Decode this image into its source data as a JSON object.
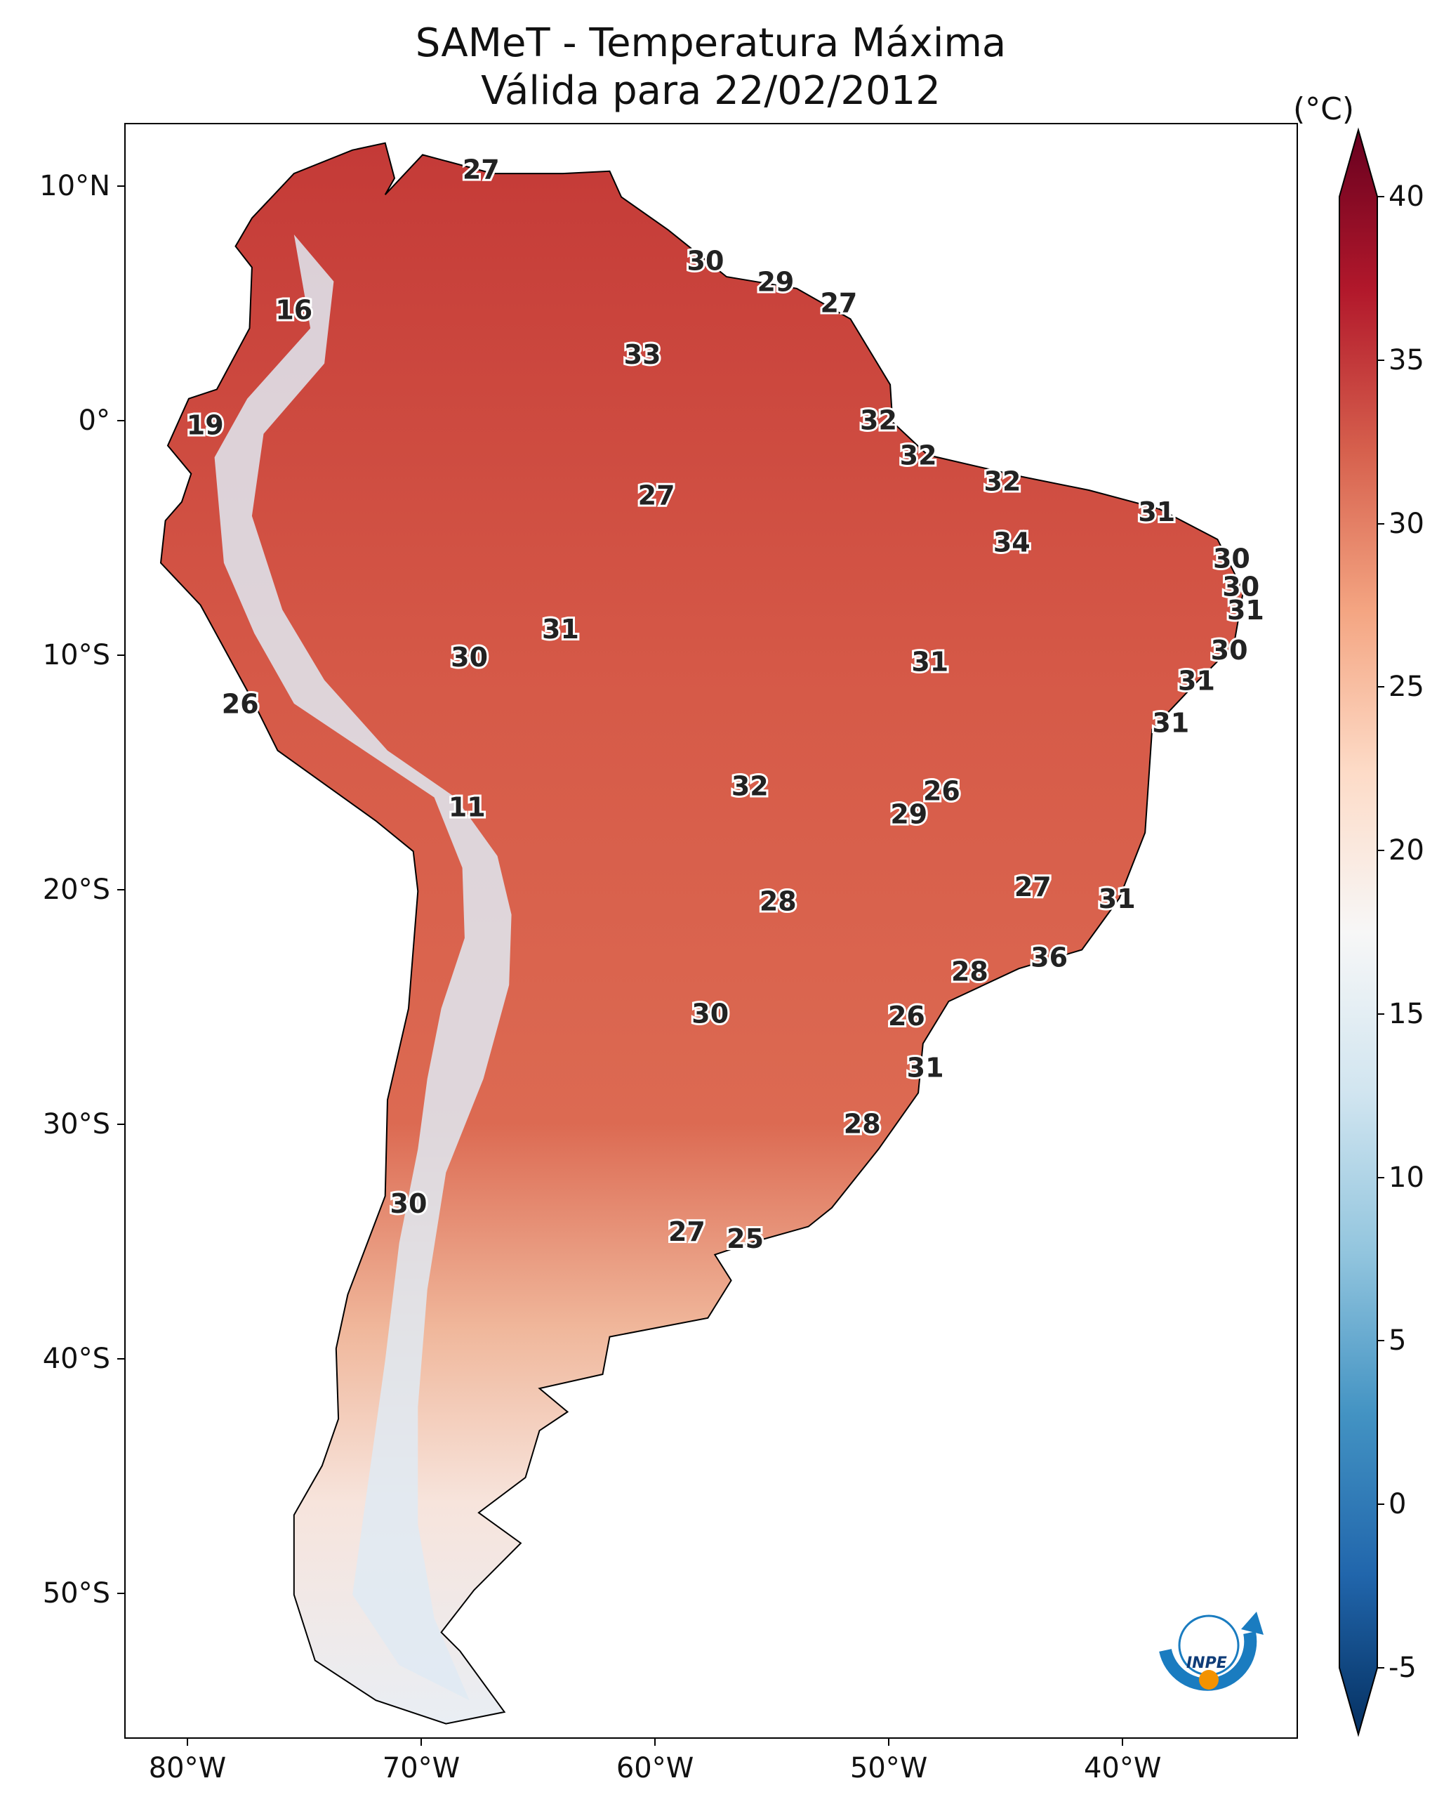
{
  "title": "SAMeT - Temperatura Máxima",
  "subtitle": "Válida para 22/02/2012",
  "colorbar": {
    "unit": "(°C)",
    "min": -5,
    "max": 40,
    "ticks": [
      "40",
      "35",
      "30",
      "25",
      "20",
      "15",
      "10",
      "5",
      "0",
      "-5"
    ],
    "colors": [
      "#053061",
      "#2166ac",
      "#4393c3",
      "#92c5de",
      "#d1e5f0",
      "#f7f7f7",
      "#fddbc7",
      "#f4a582",
      "#d6604d",
      "#b2182b",
      "#67001f"
    ]
  },
  "axes": {
    "lon_ticks": [
      "80°W",
      "70°W",
      "60°W",
      "50°W",
      "40°W"
    ],
    "lat_ticks": [
      "10°N",
      "0°",
      "10°S",
      "20°S",
      "30°S",
      "40°S",
      "50°S"
    ],
    "lon_range": [
      -82.7,
      -32.5
    ],
    "lat_range": [
      -56.2,
      12.7
    ]
  },
  "station_labels": [
    {
      "text": "27",
      "lon": -67.5,
      "lat": 10.7
    },
    {
      "text": "30",
      "lon": -57.9,
      "lat": 6.8
    },
    {
      "text": "29",
      "lon": -54.9,
      "lat": 5.9
    },
    {
      "text": "27",
      "lon": -52.2,
      "lat": 5.0
    },
    {
      "text": "16",
      "lon": -75.5,
      "lat": 4.7
    },
    {
      "text": "33",
      "lon": -60.6,
      "lat": 2.8
    },
    {
      "text": "19",
      "lon": -79.3,
      "lat": -0.2
    },
    {
      "text": "32",
      "lon": -50.5,
      "lat": 0.0
    },
    {
      "text": "32",
      "lon": -48.8,
      "lat": -1.5
    },
    {
      "text": "27",
      "lon": -60.0,
      "lat": -3.2
    },
    {
      "text": "32",
      "lon": -45.2,
      "lat": -2.6
    },
    {
      "text": "31",
      "lon": -38.6,
      "lat": -3.9
    },
    {
      "text": "34",
      "lon": -44.8,
      "lat": -5.2
    },
    {
      "text": "30",
      "lon": -35.4,
      "lat": -5.9
    },
    {
      "text": "30",
      "lon": -35.0,
      "lat": -7.1
    },
    {
      "text": "31",
      "lon": -34.8,
      "lat": -8.1
    },
    {
      "text": "31",
      "lon": -64.1,
      "lat": -8.9
    },
    {
      "text": "30",
      "lon": -68.0,
      "lat": -10.1
    },
    {
      "text": "31",
      "lon": -48.3,
      "lat": -10.3
    },
    {
      "text": "30",
      "lon": -35.5,
      "lat": -9.8
    },
    {
      "text": "31",
      "lon": -36.9,
      "lat": -11.1
    },
    {
      "text": "26",
      "lon": -77.8,
      "lat": -12.1
    },
    {
      "text": "31",
      "lon": -38.0,
      "lat": -12.9
    },
    {
      "text": "26",
      "lon": -47.8,
      "lat": -15.8
    },
    {
      "text": "32",
      "lon": -56.0,
      "lat": -15.6
    },
    {
      "text": "29",
      "lon": -49.2,
      "lat": -16.8
    },
    {
      "text": "11",
      "lon": -68.1,
      "lat": -16.5
    },
    {
      "text": "27",
      "lon": -43.9,
      "lat": -19.9
    },
    {
      "text": "31",
      "lon": -40.3,
      "lat": -20.4
    },
    {
      "text": "28",
      "lon": -54.8,
      "lat": -20.5
    },
    {
      "text": "36",
      "lon": -43.2,
      "lat": -22.9
    },
    {
      "text": "28",
      "lon": -46.6,
      "lat": -23.5
    },
    {
      "text": "30",
      "lon": -57.7,
      "lat": -25.3
    },
    {
      "text": "26",
      "lon": -49.3,
      "lat": -25.4
    },
    {
      "text": "31",
      "lon": -48.5,
      "lat": -27.6
    },
    {
      "text": "28",
      "lon": -51.2,
      "lat": -30.0
    },
    {
      "text": "30",
      "lon": -70.6,
      "lat": -33.4
    },
    {
      "text": "27",
      "lon": -58.7,
      "lat": -34.6
    },
    {
      "text": "25",
      "lon": -56.2,
      "lat": -34.9
    }
  ],
  "logo": {
    "text": "INPE"
  }
}
